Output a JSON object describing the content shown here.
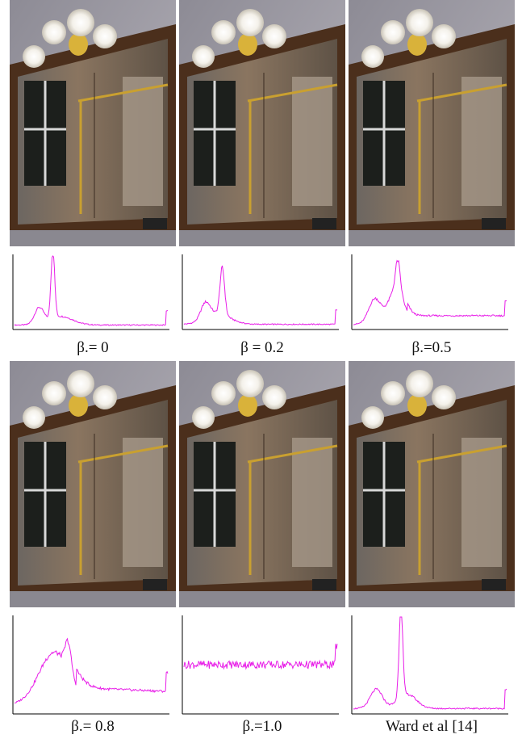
{
  "panels": [
    {
      "caption": "β.= 0"
    },
    {
      "caption": "β = 0.2"
    },
    {
      "caption": "β.=0.5"
    },
    {
      "caption": "β.= 0.8"
    },
    {
      "caption": "β.=1.0"
    },
    {
      "caption": "Ward et al [14]"
    }
  ]
}
